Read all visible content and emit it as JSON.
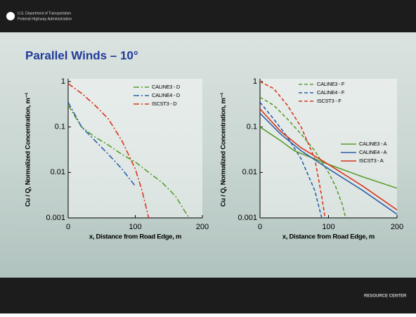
{
  "header": {
    "agency_line1": "U.S. Department of Transportation",
    "agency_line2": "Federal Highway Administration",
    "title": "Parallel Winds – 10°",
    "footer": "RESOURCE CENTER"
  },
  "chart_data": [
    {
      "type": "line",
      "log_y": true,
      "legend": "upper right",
      "xlabel": "x, Distance from Road Edge, m",
      "ylabel": "Cu / Q, Normalized Concentration, m⁻¹",
      "xlim": [
        0,
        200
      ],
      "xticks": [
        0,
        100,
        200
      ],
      "ylim": [
        0.001,
        1
      ],
      "yticks": [
        0.001,
        0.01,
        0.1,
        1
      ],
      "series": [
        {
          "name": "CALINE3 - D",
          "color": "#5a9e2c",
          "dash": "dash-dot",
          "x": [
            0,
            20,
            40,
            60,
            80,
            100,
            120,
            140,
            160,
            180
          ],
          "values": [
            0.3,
            0.1,
            0.06,
            0.04,
            0.025,
            0.017,
            0.01,
            0.006,
            0.003,
            0.001
          ]
        },
        {
          "name": "CALINE4 - D",
          "color": "#2e5fa8",
          "dash": "dash-dot",
          "x": [
            0,
            20,
            40,
            60,
            80,
            100
          ],
          "values": [
            0.35,
            0.1,
            0.05,
            0.025,
            0.012,
            0.005
          ]
        },
        {
          "name": "ISCST3 - D",
          "color": "#d8361c",
          "dash": "dash-dot",
          "x": [
            0,
            20,
            40,
            60,
            80,
            100,
            110,
            120
          ],
          "values": [
            0.9,
            0.55,
            0.3,
            0.15,
            0.05,
            0.012,
            0.004,
            0.001
          ]
        }
      ]
    },
    {
      "type": "line",
      "log_y": true,
      "legend": "upper right",
      "xlabel": "x, Distance from Road Edge, m",
      "ylabel": "Cu / Q, Normalized Concentration, m⁻¹",
      "xlim": [
        0,
        200
      ],
      "xticks": [
        0,
        100,
        200
      ],
      "ylim": [
        0.001,
        1
      ],
      "yticks": [
        0.001,
        0.01,
        0.1,
        1
      ],
      "series": [
        {
          "name": "CALINE3 - F",
          "color": "#5a9e2c",
          "dash": "dashed",
          "x": [
            0,
            20,
            40,
            60,
            80,
            100,
            110,
            120,
            125
          ],
          "values": [
            0.45,
            0.3,
            0.15,
            0.07,
            0.03,
            0.01,
            0.005,
            0.002,
            0.001
          ]
        },
        {
          "name": "CALINE4 - F",
          "color": "#2e5fa8",
          "dash": "dashed",
          "x": [
            0,
            20,
            40,
            60,
            80,
            90
          ],
          "values": [
            0.35,
            0.15,
            0.06,
            0.02,
            0.004,
            0.001
          ]
        },
        {
          "name": "ISCST3 - F",
          "color": "#d8361c",
          "dash": "dashed",
          "x": [
            0,
            20,
            40,
            60,
            80,
            90,
            95
          ],
          "values": [
            1,
            0.7,
            0.3,
            0.1,
            0.02,
            0.003,
            0.001
          ]
        },
        {
          "name": "CALINE3 - A",
          "color": "#5a9e2c",
          "dash": "solid",
          "x": [
            0,
            30,
            50,
            100,
            150,
            200
          ],
          "values": [
            0.1,
            0.05,
            0.03,
            0.015,
            0.008,
            0.0045
          ]
        },
        {
          "name": "CALINE4 - A",
          "color": "#2e5fa8",
          "dash": "solid",
          "x": [
            0,
            30,
            60,
            100,
            150,
            200
          ],
          "values": [
            0.2,
            0.07,
            0.03,
            0.012,
            0.004,
            0.0012
          ]
        },
        {
          "name": "ISCST3 - A",
          "color": "#d8361c",
          "dash": "solid",
          "x": [
            0,
            30,
            60,
            100,
            150,
            200
          ],
          "values": [
            0.25,
            0.08,
            0.035,
            0.015,
            0.005,
            0.0015
          ]
        }
      ]
    }
  ]
}
